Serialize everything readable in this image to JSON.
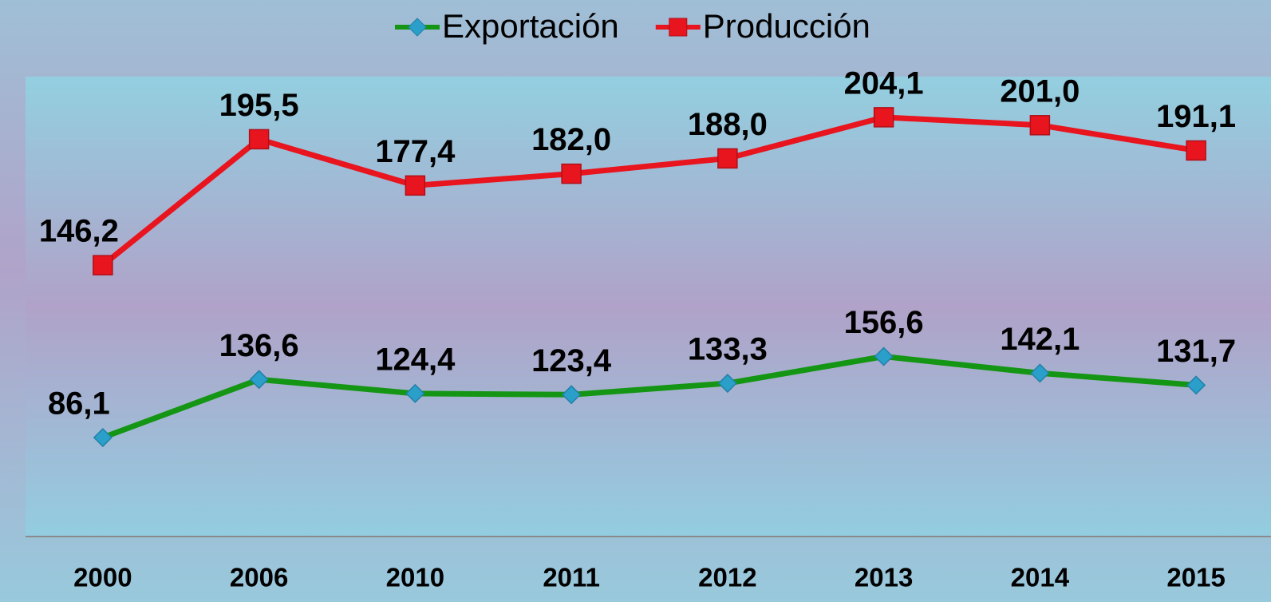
{
  "chart_data": {
    "type": "line",
    "categories": [
      "2000",
      "2006",
      "2010",
      "2011",
      "2012",
      "2013",
      "2014",
      "2015"
    ],
    "series": [
      {
        "name": "Exportación",
        "color": "#149614",
        "marker_color": "#2a9fc9",
        "marker": "diamond",
        "values": [
          86.1,
          136.6,
          124.4,
          123.4,
          133.3,
          156.6,
          142.1,
          131.7
        ],
        "value_labels": [
          "86,1",
          "136,6",
          "124,4",
          "123,4",
          "133,3",
          "156,6",
          "142,1",
          "131,7"
        ]
      },
      {
        "name": "Producción",
        "color": "#e8141e",
        "marker_color": "#e8141e",
        "marker": "square",
        "axis": "y2",
        "values": [
          146.2,
          195.5,
          177.4,
          182.0,
          188.0,
          204.1,
          201.0,
          191.1
        ],
        "value_labels": [
          "146,2",
          "195,5",
          "177,4",
          "182,0",
          "188,0",
          "204,1",
          "201,0",
          "191,1"
        ]
      }
    ],
    "ylim": [
      0,
      400
    ],
    "y2lim": [
      40,
      220
    ],
    "legend": "top"
  }
}
